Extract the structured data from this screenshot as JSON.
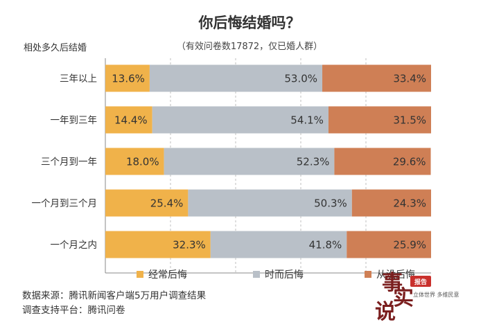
{
  "chart_data": {
    "type": "bar",
    "orientation": "horizontal",
    "stacked": true,
    "title": "你后悔结婚吗？",
    "subtitle": "（有效问卷数17872，仅已婚人群）",
    "ylabel": "相处多久后结婚",
    "categories": [
      "三年以上",
      "一年到三年",
      "三个月到一年",
      "一个月到三个月",
      "一个月之内"
    ],
    "series": [
      {
        "name": "经常后悔",
        "color": "#f0b24a",
        "values": [
          13.6,
          14.4,
          18.0,
          25.4,
          32.3
        ]
      },
      {
        "name": "时而后悔",
        "color": "#b9c0c8",
        "values": [
          53.0,
          54.1,
          52.3,
          50.3,
          41.8
        ]
      },
      {
        "name": "从没后悔",
        "color": "#cf7f55",
        "values": [
          33.4,
          31.5,
          29.6,
          24.3,
          25.9
        ]
      }
    ],
    "xlim": [
      0,
      100
    ],
    "grid": true,
    "legend": "bottom",
    "value_suffix": "%"
  },
  "footer": {
    "line1": "数据来源：腾讯新闻客户端5万用户调查结果",
    "line2": "调查支持平台：腾讯问卷"
  },
  "stamp": {
    "glyph1": "事",
    "glyph2": "实",
    "glyph3": "说",
    "badge": "报告",
    "tagline": "立体世界 多维民意",
    "badge_color": "#c9302c"
  }
}
